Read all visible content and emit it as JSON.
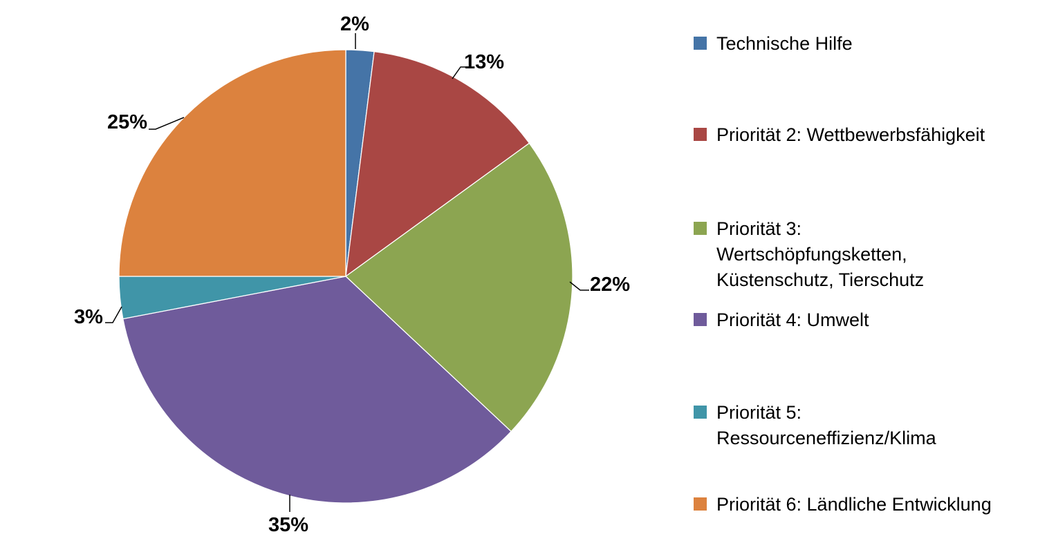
{
  "figure": {
    "background_color": "#ffffff",
    "label_text_color": "#000000",
    "legend_text_color": "#000000"
  },
  "chart_data": {
    "type": "pie",
    "title": "",
    "values_unit": "percent",
    "start_angle_deg": 0,
    "direction": "clockwise",
    "legend_position": "right",
    "data_labels_shown": true,
    "slices": [
      {
        "label": "Technische Hilfe",
        "value": 2,
        "pct_text": "2%",
        "color": "#4574A7",
        "legend_lines": [
          "Technische Hilfe"
        ]
      },
      {
        "label": "Priorität 2: Wettbewerbsfähigkeit",
        "value": 13,
        "pct_text": "13%",
        "color": "#A94744",
        "legend_lines": [
          "Priorität 2: Wettbewerbsfähigkeit"
        ]
      },
      {
        "label": "Priorität 3: Wertschöpfungsketten, Küstenschutz, Tierschutz",
        "value": 22,
        "pct_text": "22%",
        "color": "#8CA551",
        "legend_lines": [
          "Priorität 3:",
          "Wertschöpfungsketten,",
          "Küstenschutz, Tierschutz"
        ]
      },
      {
        "label": "Priorität 4: Umwelt",
        "value": 35,
        "pct_text": "35%",
        "color": "#6F5B9B",
        "legend_lines": [
          "Priorität 4: Umwelt"
        ]
      },
      {
        "label": "Priorität 5: Ressourceneffizienz/Klima",
        "value": 3,
        "pct_text": "3%",
        "color": "#4095A8",
        "legend_lines": [
          "Priorität 5:",
          "Ressourceneffizienz/Klima"
        ]
      },
      {
        "label": "Priorität 6: Ländliche Entwicklung",
        "value": 25,
        "pct_text": "25%",
        "color": "#DC823E",
        "legend_lines": [
          "Priorität 6: Ländliche Entwicklung"
        ]
      }
    ]
  }
}
